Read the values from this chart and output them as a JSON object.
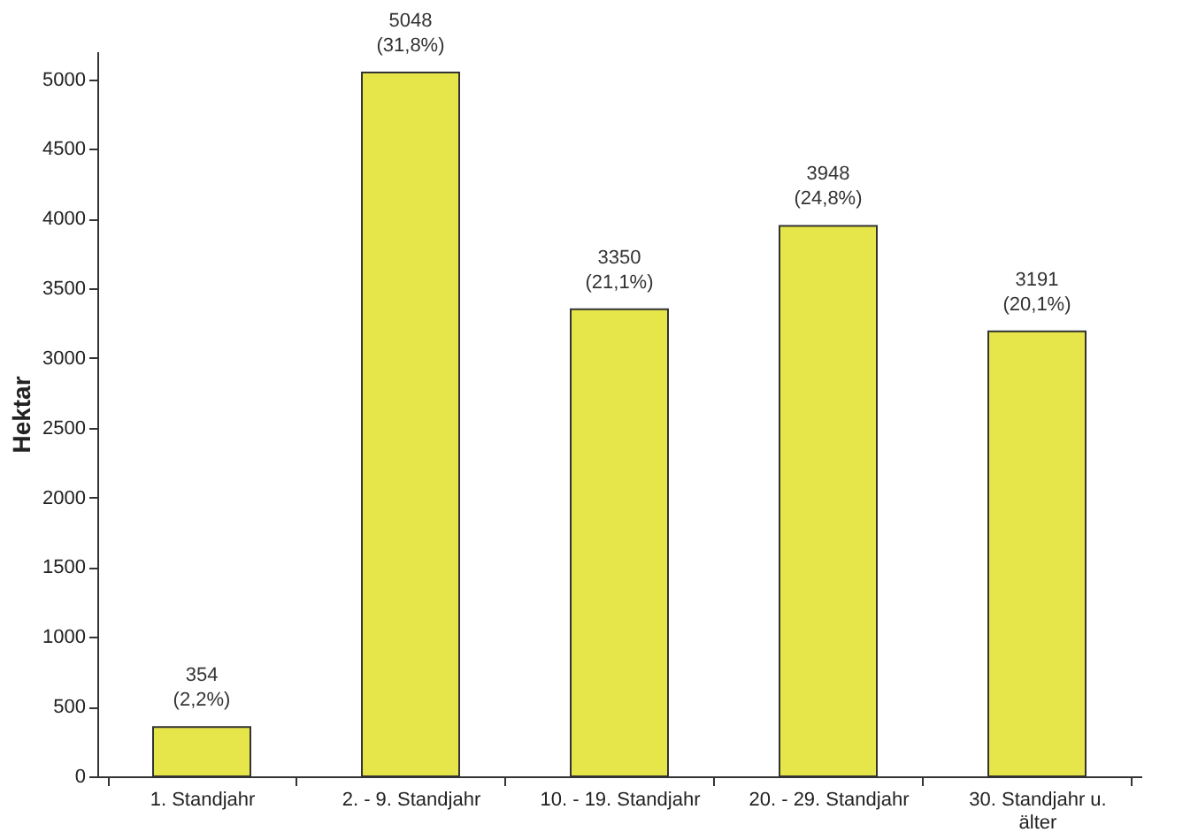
{
  "chart_data": {
    "type": "bar",
    "categories": [
      "1. Standjahr",
      "2. - 9. Standjahr",
      "10. - 19. Standjahr",
      "20. - 29. Standjahr",
      "30. Standjahr u. älter"
    ],
    "values": [
      354,
      5048,
      3350,
      3948,
      3191
    ],
    "value_labels": [
      "354 (2,2%)",
      "5048 (31,8%)",
      "3350 (21,1%)",
      "3948 (24,8%)",
      "3191 (20,1%)"
    ],
    "color": "#e6e64a",
    "ylabel": "Hektar",
    "ylim": [
      0,
      5200
    ],
    "yticks": [
      0,
      500,
      1000,
      1500,
      2000,
      2500,
      3000,
      3500,
      4000,
      4500,
      5000
    ],
    "grid": false
  }
}
